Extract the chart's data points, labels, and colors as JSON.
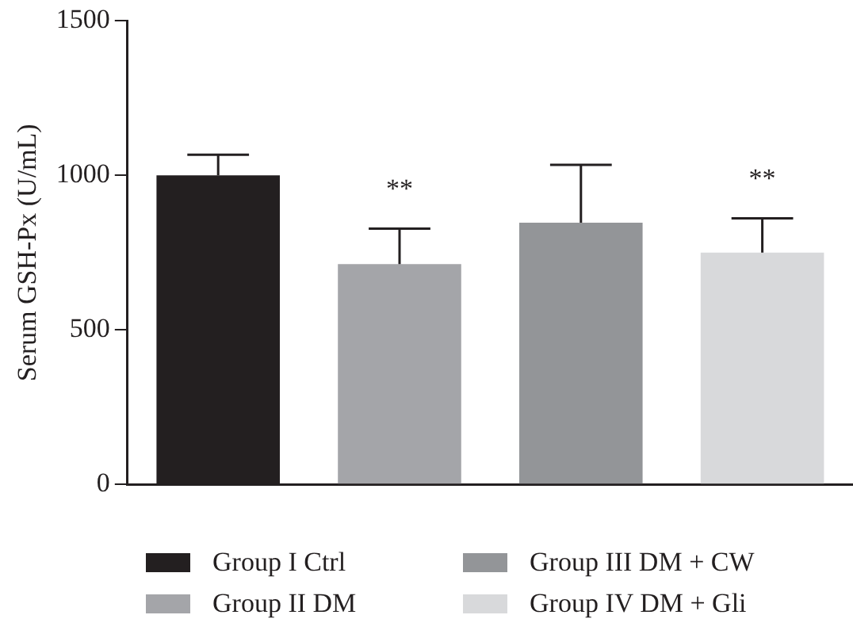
{
  "chart_data": {
    "type": "bar",
    "ylabel": "Serum GSH-Px (U/mL)",
    "categories": [
      null,
      null,
      null,
      null
    ],
    "series": [
      {
        "name": "Group I Ctrl",
        "color": "#231f20",
        "values": [
          1000,
          null,
          null,
          null
        ],
        "errors": [
          [
            1000,
            1067
          ],
          null,
          null,
          null
        ]
      },
      {
        "name": "Group II DM",
        "color": "#a4a5a9",
        "values": [
          null,
          713,
          null,
          null
        ],
        "errors": [
          null,
          [
            713,
            828
          ],
          null,
          null
        ]
      },
      {
        "name": "Group III DM + CW",
        "color": "#939598",
        "values": [
          null,
          null,
          847,
          null
        ],
        "errors": [
          null,
          null,
          [
            847,
            1034
          ],
          null
        ]
      },
      {
        "name": "Group IV DM + Gli",
        "color": "#d8d9db",
        "values": [
          null,
          null,
          null,
          750
        ],
        "errors": [
          null,
          null,
          null,
          [
            750,
            861
          ]
        ]
      }
    ],
    "ylim": [
      0,
      1500
    ],
    "yticks": [
      0,
      500,
      1000,
      1500
    ],
    "grid": false,
    "legend": "bottom",
    "annotations": [
      "**",
      "**"
    ]
  }
}
